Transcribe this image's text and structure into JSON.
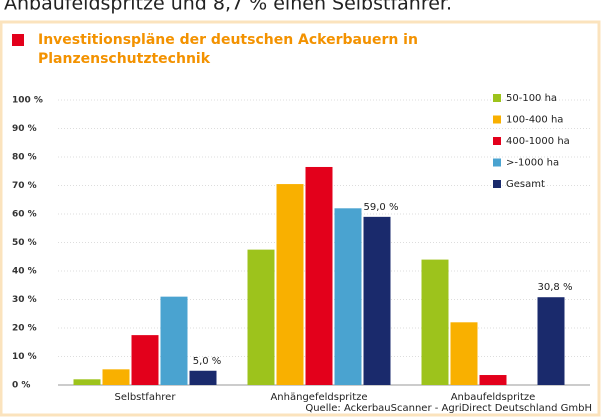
{
  "header_text": "Anbaufeldspritze und 8,7 % einen Selbstfahrer.",
  "chart_data": {
    "type": "bar",
    "title": "Investitionspläne der deutschen Ackerbauern in",
    "subtitle": "Planzenschutztechnik",
    "categories": [
      "Selbstfahrer",
      "Anhängefeldspritze",
      "Anbaufeldspritze"
    ],
    "series": [
      {
        "name": "50-100 ha",
        "color": "#9dc31c",
        "values": [
          2,
          47.5,
          44
        ]
      },
      {
        "name": "100-400 ha",
        "color": "#f9b000",
        "values": [
          5.5,
          70.5,
          22
        ]
      },
      {
        "name": "400-1000 ha",
        "color": "#e3001b",
        "values": [
          17.5,
          76.5,
          3.5
        ]
      },
      {
        "name": ">-1000 ha",
        "color": "#4aa3d0",
        "values": [
          31,
          62,
          0
        ]
      },
      {
        "name": "Gesamt",
        "color": "#1a2a6c",
        "values": [
          5.0,
          59.0,
          30.8
        ],
        "value_labels": [
          "5,0 %",
          "59,0 %",
          "30,8 %"
        ]
      }
    ],
    "ylim": [
      0,
      100
    ],
    "yticks": [
      {
        "value": 0,
        "label": "0 %"
      },
      {
        "value": 10,
        "label": "10 %"
      },
      {
        "value": 20,
        "label": "20 %"
      },
      {
        "value": 30,
        "label": "30 %"
      },
      {
        "value": 40,
        "label": "40 %"
      },
      {
        "value": 50,
        "label": "50 %"
      },
      {
        "value": 60,
        "label": "60 %"
      },
      {
        "value": 70,
        "label": "70 %"
      },
      {
        "value": 80,
        "label": "80 %"
      },
      {
        "value": 90,
        "label": "90 %"
      },
      {
        "value": 100,
        "label": "100 %"
      }
    ],
    "grid": true,
    "legend": "right",
    "source": "Quelle: AckerbauScanner - AgriDirect Deutschland GmbH"
  }
}
